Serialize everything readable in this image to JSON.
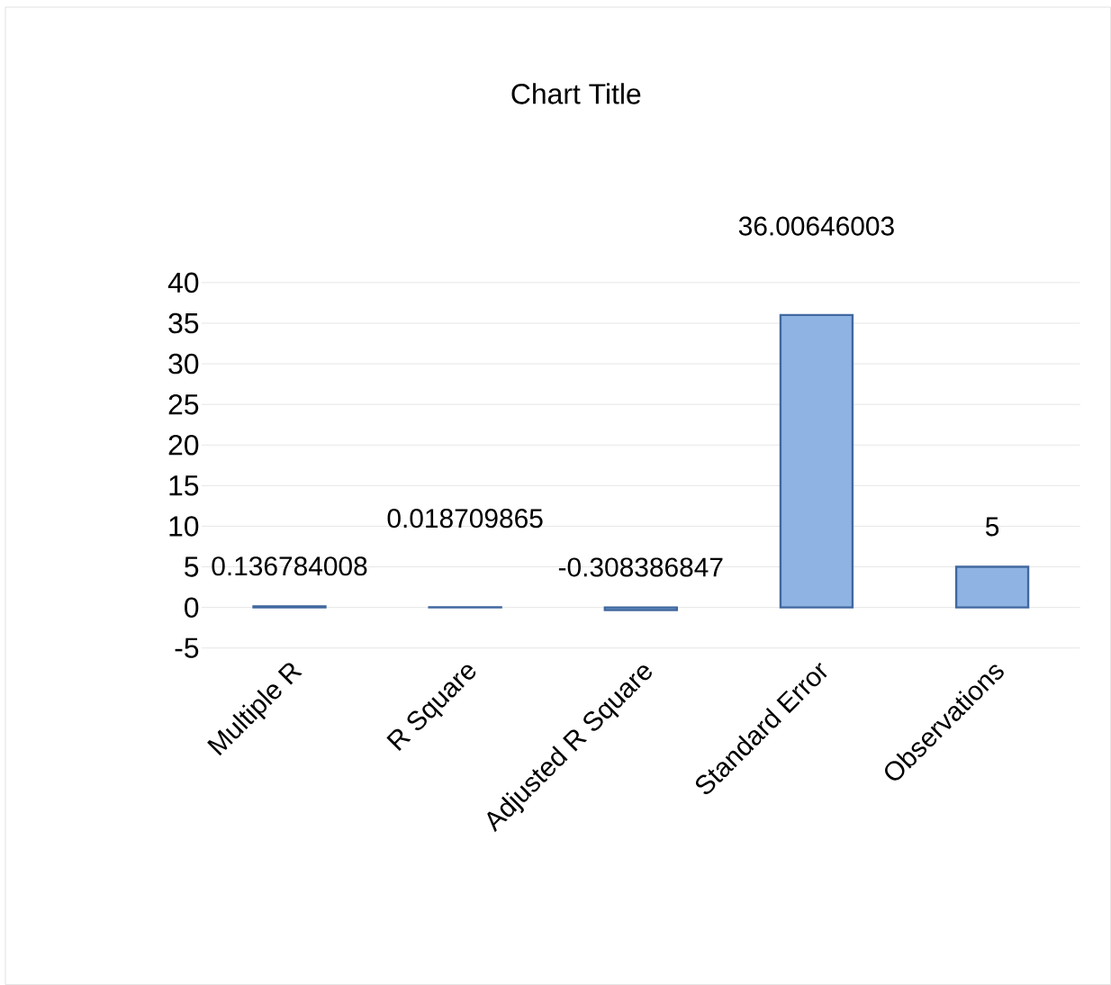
{
  "chart_data": {
    "type": "bar",
    "title": "Chart Title",
    "categories": [
      "Multiple R",
      "R Square",
      "Adjusted R Square",
      "Standard Error",
      "Observations"
    ],
    "values": [
      0.136784008,
      0.018709865,
      -0.308386847,
      36.00646003,
      5
    ],
    "color": "#8fb4e3",
    "data_labels": true,
    "ylim": [
      -5,
      40
    ],
    "yticks": [
      -5,
      0,
      5,
      10,
      15,
      20,
      25,
      30,
      35,
      40
    ],
    "grid": "y"
  }
}
